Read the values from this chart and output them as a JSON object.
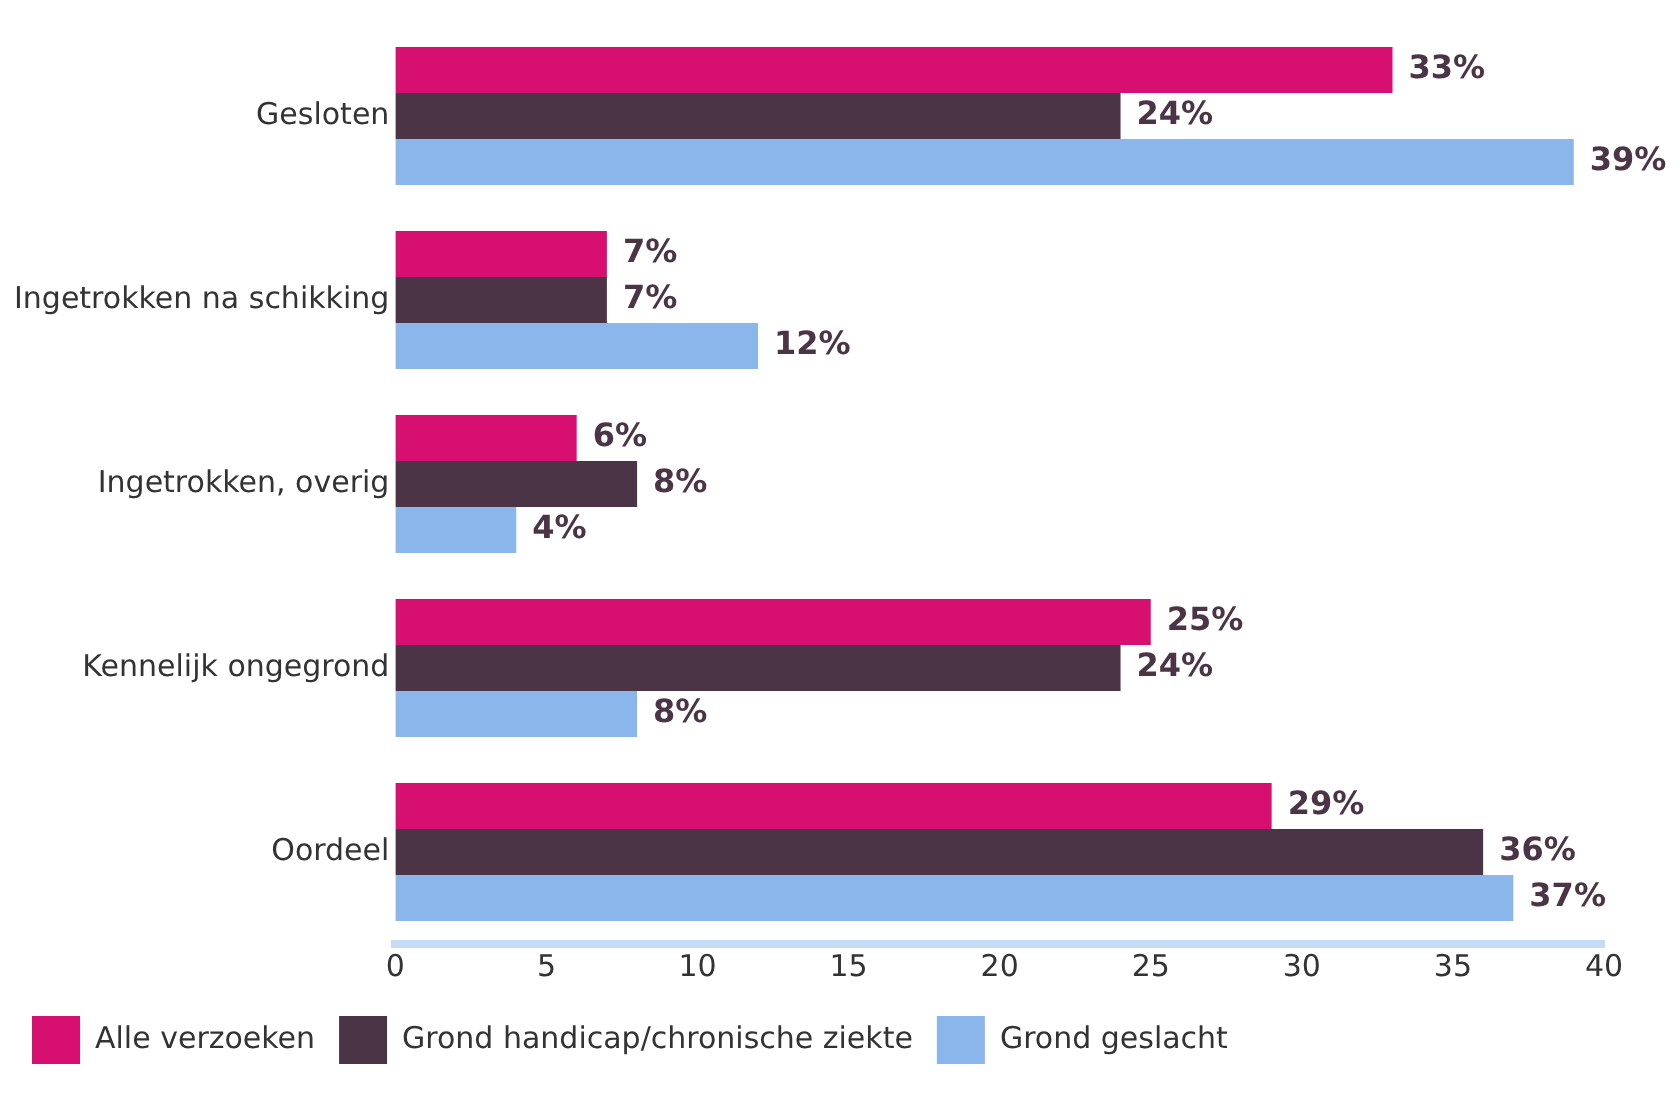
{
  "chart_data": {
    "type": "bar",
    "orientation": "horizontal",
    "categories": [
      "Gesloten",
      "Ingetrokken na schikking",
      "Ingetrokken, overig",
      "Kennelijk ongegrond",
      "Oordeel"
    ],
    "series": [
      {
        "name": "Alle verzoeken",
        "color": "#d60f70",
        "values": [
          33,
          7,
          6,
          25,
          29
        ],
        "value_labels": [
          "33%",
          "7%",
          "6%",
          "25%",
          "29%"
        ]
      },
      {
        "name": "Grond handicap/chronische ziekte",
        "color": "#4b3446",
        "values": [
          24,
          7,
          8,
          24,
          36
        ],
        "value_labels": [
          "24%",
          "7%",
          "8%",
          "24%",
          "36%"
        ]
      },
      {
        "name": "Grond geslacht",
        "color": "#8bb6ec",
        "values": [
          39,
          12,
          4,
          8,
          37
        ],
        "value_labels": [
          "39%",
          "12%",
          "4%",
          "8%",
          "37%"
        ]
      }
    ],
    "xlim": [
      0,
      40
    ],
    "xticks": [
      0,
      5,
      10,
      15,
      20,
      25,
      30,
      35,
      40
    ],
    "grid": false,
    "legend": "bottom"
  }
}
